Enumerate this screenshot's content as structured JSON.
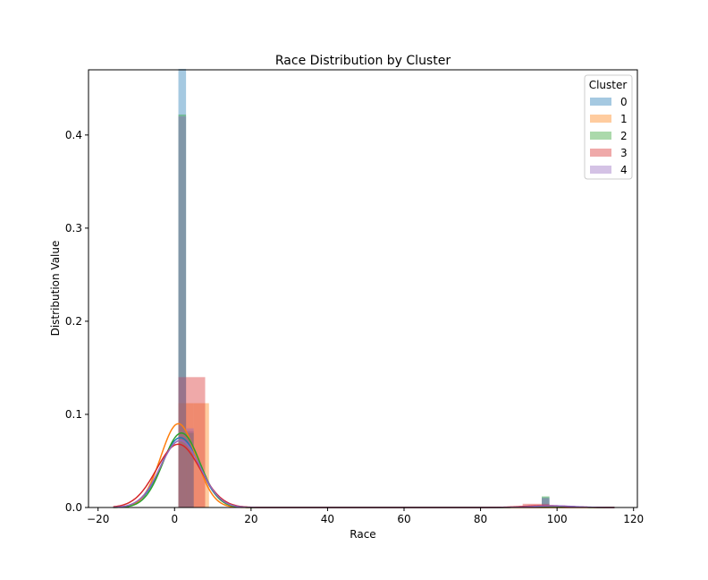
{
  "chart_data": {
    "type": "bar",
    "title": "Race Distribution by Cluster",
    "xlabel": "Race",
    "ylabel": "Distribution Value",
    "xlim": [
      -22.5,
      121
    ],
    "ylim": [
      0,
      0.47
    ],
    "xticks": [
      -20,
      0,
      20,
      40,
      60,
      80,
      100,
      120
    ],
    "yticks": [
      0.0,
      0.1,
      0.2,
      0.3,
      0.4
    ],
    "ytick_labels": [
      "0.0",
      "0.1",
      "0.2",
      "0.3",
      "0.4"
    ],
    "legend": {
      "title": "Cluster",
      "position": "top-right"
    },
    "series": [
      {
        "name": "0",
        "color": "#1f77b4",
        "hist": [
          {
            "x0": 1,
            "x1": 3,
            "y": 0.471
          },
          {
            "x0": 3,
            "x1": 5,
            "y": 0.082
          },
          {
            "x0": 96,
            "x1": 98,
            "y": 0.011
          }
        ],
        "kde_mu": [
          1.5,
          98
        ],
        "kde_sigma": 5.0,
        "kde_peak": [
          0.075,
          0.0015
        ]
      },
      {
        "name": "1",
        "color": "#ff7f0e",
        "hist": [
          {
            "x0": 1,
            "x1": 5,
            "y": 0.112
          },
          {
            "x0": 5,
            "x1": 9,
            "y": 0.112
          }
        ],
        "kde_mu": [
          1.0
        ],
        "kde_sigma": 4.6,
        "kde_peak": [
          0.09
        ]
      },
      {
        "name": "2",
        "color": "#2ca02c",
        "hist": [
          {
            "x0": 1,
            "x1": 3,
            "y": 0.422
          },
          {
            "x0": 3,
            "x1": 5,
            "y": 0.08
          },
          {
            "x0": 96,
            "x1": 98,
            "y": 0.012
          }
        ],
        "kde_mu": [
          1.8,
          98
        ],
        "kde_sigma": 4.8,
        "kde_peak": [
          0.08,
          0.0015
        ]
      },
      {
        "name": "3",
        "color": "#d62728",
        "hist": [
          {
            "x0": 1,
            "x1": 8,
            "y": 0.14
          },
          {
            "x0": 91,
            "x1": 98,
            "y": 0.004
          }
        ],
        "kde_mu": [
          1.0,
          97
        ],
        "kde_sigma": 5.7,
        "kde_peak": [
          0.068,
          0.002
        ]
      },
      {
        "name": "4",
        "color": "#9467bd",
        "hist": [
          {
            "x0": 1,
            "x1": 3,
            "y": 0.42
          },
          {
            "x0": 3,
            "x1": 5,
            "y": 0.085
          },
          {
            "x0": 96,
            "x1": 98,
            "y": 0.01
          }
        ],
        "kde_mu": [
          1.5,
          99
        ],
        "kde_sigma": 5.2,
        "kde_peak": [
          0.072,
          0.0018
        ]
      }
    ]
  }
}
